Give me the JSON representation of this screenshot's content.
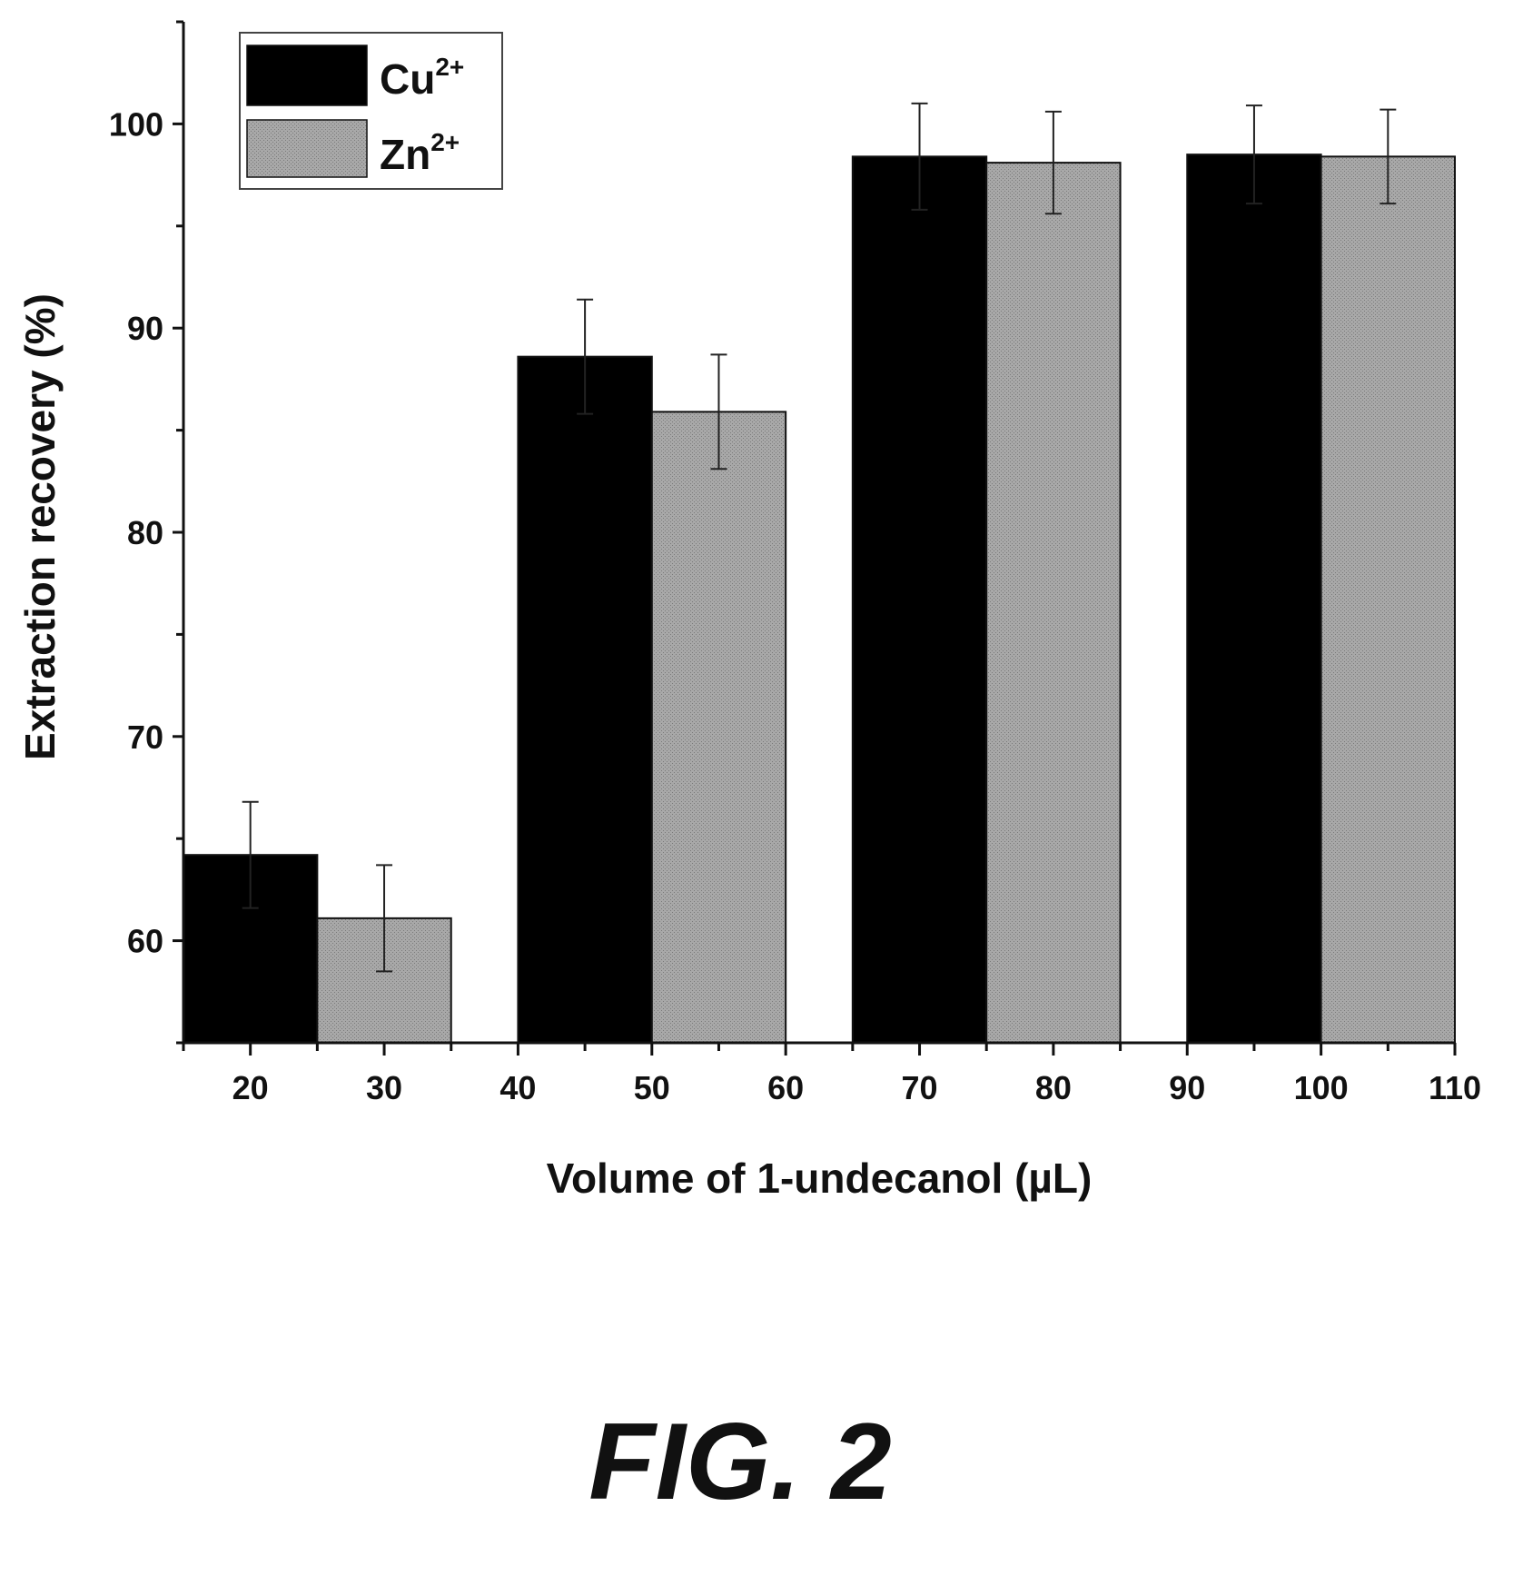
{
  "chart_data": {
    "type": "bar",
    "xlabel": "Volume of 1-undecanol (µL)",
    "ylabel": "Extraction recovery (%)",
    "ylim": [
      55,
      105
    ],
    "y_ticks": [
      60,
      70,
      80,
      90,
      100
    ],
    "xlim": [
      15,
      110
    ],
    "x_ticks": [
      20,
      30,
      40,
      50,
      60,
      70,
      80,
      90,
      100,
      110
    ],
    "legend_position": "top-left",
    "series": [
      {
        "name": "Cu",
        "name_sup": "2+",
        "color": "#000000",
        "bars": [
          {
            "x0": 15,
            "x1": 25,
            "value": 64.2,
            "error": 2.6
          },
          {
            "x0": 40,
            "x1": 50,
            "value": 88.6,
            "error": 2.8
          },
          {
            "x0": 65,
            "x1": 75,
            "value": 98.4,
            "error": 2.6
          },
          {
            "x0": 90,
            "x1": 100,
            "value": 98.5,
            "error": 2.4
          }
        ]
      },
      {
        "name": "Zn",
        "name_sup": "2+",
        "color": "#9a9a9a",
        "bars": [
          {
            "x0": 25,
            "x1": 35,
            "value": 61.1,
            "error": 2.6
          },
          {
            "x0": 50,
            "x1": 60,
            "value": 85.9,
            "error": 2.8
          },
          {
            "x0": 75,
            "x1": 85,
            "value": 98.1,
            "error": 2.5
          },
          {
            "x0": 100,
            "x1": 110,
            "value": 98.4,
            "error": 2.3
          }
        ]
      }
    ]
  },
  "figure_label": "FIG. 2"
}
